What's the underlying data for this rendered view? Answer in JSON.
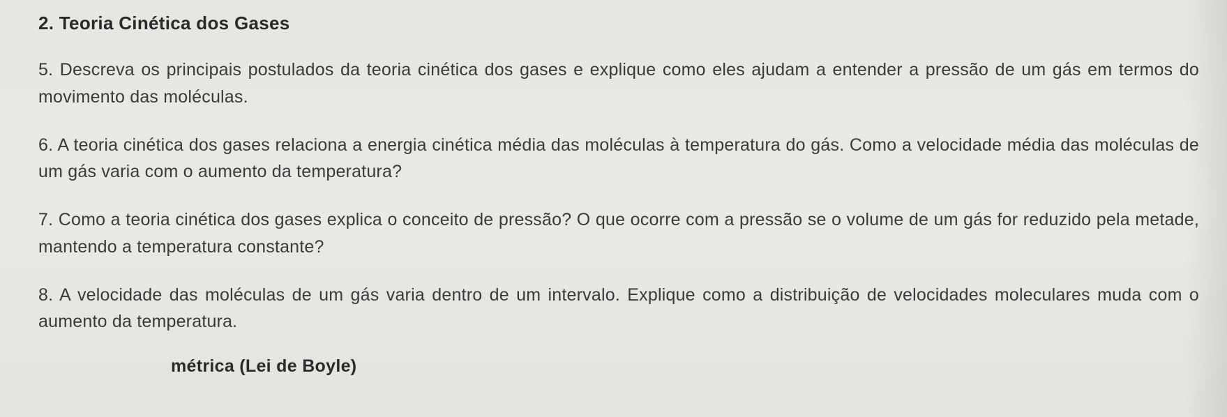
{
  "document": {
    "section_title": "2. Teoria Cinética dos Gases",
    "questions": {
      "q5": "5. Descreva os principais postulados da teoria cinética dos gases e explique como eles ajudam a entender a pressão de um gás em termos do movimento das moléculas.",
      "q6": "6. A teoria cinética dos gases relaciona a energia cinética média das moléculas à temperatura do gás. Como a velocidade média das moléculas de um gás varia com o aumento da temperatura?",
      "q7": "7. Como a teoria cinética dos gases explica o conceito de pressão? O que ocorre com a pressão se o volume de um gás for reduzido pela metade, mantendo a temperatura constante?",
      "q8": "8. A velocidade das moléculas de um gás varia dentro de um intervalo. Explique como a distribuição de velocidades moleculares muda com o aumento da temperatura."
    },
    "partial_next_section": "métrica (Lei de Boyle)"
  },
  "styling": {
    "background_color": "#e8e6e2",
    "text_color": "#3a3a3a",
    "heading_color": "#2a2a2a",
    "font_family": "Verdana",
    "heading_fontsize": 26,
    "body_fontsize": 25,
    "line_height": 1.55
  }
}
